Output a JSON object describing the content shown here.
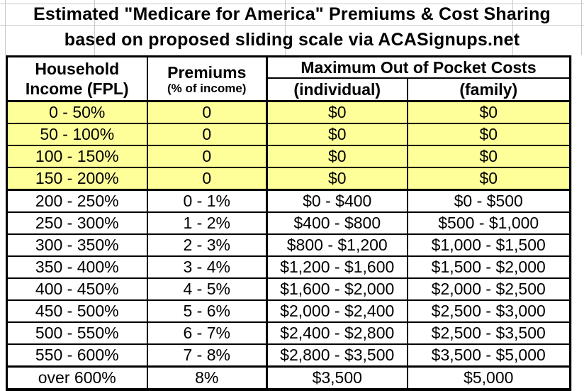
{
  "chart_data": {
    "type": "table",
    "title": "Estimated \"Medicare for America\" Premiums & Cost Sharing",
    "subtitle": "based on proposed sliding scale via ACASignups.net",
    "columns": [
      "Household Income (FPL)",
      "Premiums (% of income)",
      "Maximum Out of Pocket Costs (individual)",
      "Maximum Out of Pocket Costs (family)"
    ],
    "rows": [
      [
        "0 - 50%",
        "0",
        "$0",
        "$0"
      ],
      [
        "50 - 100%",
        "0",
        "$0",
        "$0"
      ],
      [
        "100 - 150%",
        "0",
        "$0",
        "$0"
      ],
      [
        "150 - 200%",
        "0",
        "$0",
        "$0"
      ],
      [
        "200 - 250%",
        "0 - 1%",
        "$0 - $400",
        "$0 - $500"
      ],
      [
        "250 - 300%",
        "1 - 2%",
        "$400 - $800",
        "$500 - $1,000"
      ],
      [
        "300 - 350%",
        "2 - 3%",
        "$800 - $1,200",
        "$1,000 - $1,500"
      ],
      [
        "350 - 400%",
        "3 - 4%",
        "$1,200 - $1,600",
        "$1,500 - $2,000"
      ],
      [
        "400 - 450%",
        "4 - 5%",
        "$1,600 - $2,000",
        "$2,000 - $2,500"
      ],
      [
        "450 - 500%",
        "5 - 6%",
        "$2,000 - $2,400",
        "$2,500 - $3,000"
      ],
      [
        "500 - 550%",
        "6 - 7%",
        "$2,400 - $2,800",
        "$2,500 - $3,500"
      ],
      [
        "550 - 600%",
        "7 - 8%",
        "$2,800 - $3,500",
        "$3,500 - $5,000"
      ],
      [
        "over 600%",
        "8%",
        "$3,500",
        "$5,000"
      ]
    ],
    "highlighted_rows": [
      0,
      1,
      2,
      3
    ],
    "thick_divider_rows": [
      0,
      4,
      12
    ],
    "grid": "on",
    "legend_position": "none"
  },
  "header": {
    "household_line1": "Household",
    "household_line2": "Income (FPL)",
    "premiums_line1": "Premiums",
    "premiums_line2": "(% of income)",
    "moop_title": "Maximum Out of Pocket Costs",
    "moop_individual": "(individual)",
    "moop_family": "(family)"
  },
  "colors": {
    "highlight_yellow": "#FFFF99",
    "border_black": "#000000",
    "gridline_gray": "#C9C9C9",
    "background": "#FFFFFF",
    "text": "#000000"
  }
}
